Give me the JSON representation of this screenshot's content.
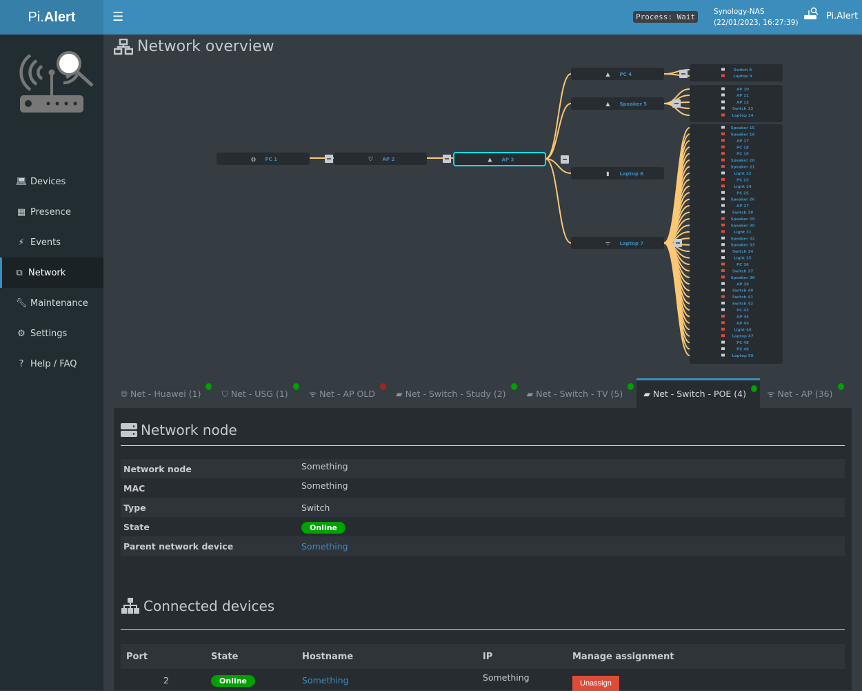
{
  "header": {
    "brand_a": "Pi.",
    "brand_b": "Alert",
    "process": "Process: Wait",
    "host": "Synology-NAS",
    "datetime": "(22/01/2023, 16:27:39)",
    "app": "Pi.Alert",
    "color": "#3c8dbc"
  },
  "sidebar": {
    "items": [
      {
        "label": "Devices",
        "icon": "laptop-icon"
      },
      {
        "label": "Presence",
        "icon": "calendar-icon"
      },
      {
        "label": "Events",
        "icon": "bolt-icon"
      },
      {
        "label": "Network",
        "icon": "sitemap-icon",
        "active": true
      },
      {
        "label": "Maintenance",
        "icon": "wrench-icon"
      },
      {
        "label": "Settings",
        "icon": "gear-icon"
      },
      {
        "label": "Help / FAQ",
        "icon": "question-icon"
      }
    ]
  },
  "page_title": "Network overview",
  "tree": {
    "chain": [
      {
        "name": "PC 1",
        "icon": "globe"
      },
      {
        "name": "AP 2",
        "icon": "shield"
      },
      {
        "name": "AP 3",
        "icon": "switch",
        "selected": true
      }
    ],
    "children": [
      {
        "name": "PC 4",
        "icon": "switch",
        "leaves": [
          {
            "name": "Switch 8",
            "c": "grey"
          },
          {
            "name": "Laptop 9",
            "c": "red"
          }
        ]
      },
      {
        "name": "Speaker 5",
        "icon": "switch",
        "leaves": [
          {
            "name": "AP 10",
            "c": "grey"
          },
          {
            "name": "AP 11",
            "c": "grey"
          },
          {
            "name": "AP 12",
            "c": "grey"
          },
          {
            "name": "Switch 13",
            "c": "grey"
          },
          {
            "name": "Laptop 14",
            "c": "red"
          }
        ]
      },
      {
        "name": "Laptop 6",
        "icon": "device",
        "leaves": []
      },
      {
        "name": "Laptop 7",
        "icon": "wifi",
        "leaves": [
          {
            "name": "Speaker 15",
            "c": "grey"
          },
          {
            "name": "Speaker 16",
            "c": "red"
          },
          {
            "name": "AP 17",
            "c": "red"
          },
          {
            "name": "PC 18",
            "c": "red"
          },
          {
            "name": "PC 19",
            "c": "red"
          },
          {
            "name": "Speaker 20",
            "c": "red"
          },
          {
            "name": "Speaker 21",
            "c": "red"
          },
          {
            "name": "Light 22",
            "c": "grey"
          },
          {
            "name": "PC 23",
            "c": "red"
          },
          {
            "name": "Light 24",
            "c": "red"
          },
          {
            "name": "PC 25",
            "c": "grey"
          },
          {
            "name": "Speaker 26",
            "c": "grey"
          },
          {
            "name": "AP 27",
            "c": "grey"
          },
          {
            "name": "Switch 28",
            "c": "grey"
          },
          {
            "name": "Speaker 29",
            "c": "red"
          },
          {
            "name": "Speaker 30",
            "c": "red"
          },
          {
            "name": "Light 31",
            "c": "red"
          },
          {
            "name": "Speaker 32",
            "c": "grey"
          },
          {
            "name": "Speaker 33",
            "c": "grey"
          },
          {
            "name": "Switch 34",
            "c": "grey"
          },
          {
            "name": "Light 35",
            "c": "grey"
          },
          {
            "name": "PC 36",
            "c": "red"
          },
          {
            "name": "Switch 37",
            "c": "red"
          },
          {
            "name": "Speaker 38",
            "c": "red"
          },
          {
            "name": "AP 39",
            "c": "grey"
          },
          {
            "name": "Switch 40",
            "c": "grey"
          },
          {
            "name": "Switch 41",
            "c": "red"
          },
          {
            "name": "Switch 42",
            "c": "grey"
          },
          {
            "name": "PC 43",
            "c": "grey"
          },
          {
            "name": "AP 44",
            "c": "red"
          },
          {
            "name": "AP 45",
            "c": "red"
          },
          {
            "name": "Light 46",
            "c": "red"
          },
          {
            "name": "Laptop 47",
            "c": "red"
          },
          {
            "name": "PC 48",
            "c": "grey"
          },
          {
            "name": "PC 49",
            "c": "grey"
          },
          {
            "name": "Laptop 50",
            "c": "grey"
          }
        ]
      }
    ],
    "collapse_label": "−",
    "colors": {
      "link": "#fdc875",
      "label": "#3c8dbc",
      "selected": "#00e5ff",
      "red": "#dd4b39",
      "grey": "#c8ccd0"
    }
  },
  "tabs": [
    {
      "label": "Net - Huawei (1)",
      "icon": "globe-icon",
      "status": "green"
    },
    {
      "label": "Net - USG (1)",
      "icon": "shield-icon",
      "status": "green"
    },
    {
      "label": "Net - AP OLD",
      "icon": "wifi-icon",
      "status": "red"
    },
    {
      "label": "Net - Switch - Study (2)",
      "icon": "switch-icon",
      "status": "green"
    },
    {
      "label": "Net - Switch - TV (5)",
      "icon": "switch-icon",
      "status": "green"
    },
    {
      "label": "Net - Switch - POE (4)",
      "icon": "switch-icon",
      "status": "green",
      "active": true
    },
    {
      "label": "Net - AP (36)",
      "icon": "wifi-icon",
      "status": "green"
    }
  ],
  "status_colors": {
    "green": "#00a000",
    "red": "#a0261a"
  },
  "node": {
    "title": "Network node",
    "rows": [
      {
        "k": "Network node",
        "v": "Something"
      },
      {
        "k": "MAC",
        "v": "Something"
      },
      {
        "k": "Type",
        "v": "Switch"
      },
      {
        "k": "State",
        "v": "Online",
        "badge": true
      },
      {
        "k": "Parent network device",
        "v": "Something",
        "link": true
      }
    ]
  },
  "connected": {
    "title": "Connected devices",
    "headers": [
      "Port",
      "State",
      "Hostname",
      "IP",
      "Manage assignment"
    ],
    "rows": [
      {
        "port": "2",
        "state": "Online",
        "hostname": "Something",
        "ip": "Something",
        "action": "Unassign"
      }
    ]
  }
}
